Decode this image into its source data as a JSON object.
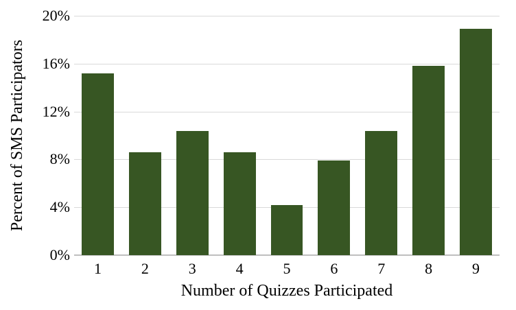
{
  "chart_data": {
    "type": "bar",
    "title": "",
    "categories": [
      "1",
      "2",
      "3",
      "4",
      "5",
      "6",
      "7",
      "8",
      "9"
    ],
    "values": [
      15.2,
      8.6,
      10.4,
      8.6,
      4.2,
      7.9,
      10.4,
      15.8,
      18.9
    ],
    "xlabel": "Number of Quizzes Participated",
    "ylabel": "Percent of SMS Participators",
    "ylim": [
      0,
      20
    ],
    "ytick_step": 4,
    "ytick_labels": [
      "0%",
      "4%",
      "8%",
      "12%",
      "16%",
      "20%"
    ],
    "grid": "horizontal",
    "legend_position": "none",
    "bar_color": "#375623",
    "gridline_color": "#d9d9d9",
    "axis_line_color": "#bfbfbf",
    "text_color": "#000000",
    "background_color": "#ffffff"
  }
}
